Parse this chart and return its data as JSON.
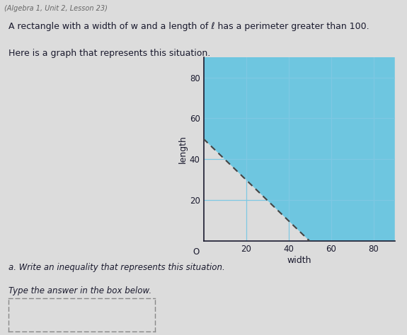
{
  "title_line1": "(Algebra 1, Unit 2, Lesson 23)",
  "description1": "A rectangle with a width of w and a length of ℓ has a perimeter greater than 100.",
  "description2": "Here is a graph that represents this situation.",
  "question": "a. Write an inequality that represents this situation.",
  "instruction": "Type the answer in the box below.",
  "xlabel": "width",
  "ylabel": "length",
  "xlim": [
    0,
    90
  ],
  "ylim": [
    0,
    90
  ],
  "xticks": [
    20,
    40,
    60,
    80
  ],
  "yticks": [
    20,
    40,
    60,
    80
  ],
  "grid_color": "#7ec8e3",
  "shade_color": "#6ec6e0",
  "line_x": [
    0,
    50
  ],
  "line_y": [
    50,
    0
  ],
  "background_color": "#dcdcdc",
  "text_color": "#1a1a2e",
  "dashed_color": "#444444"
}
